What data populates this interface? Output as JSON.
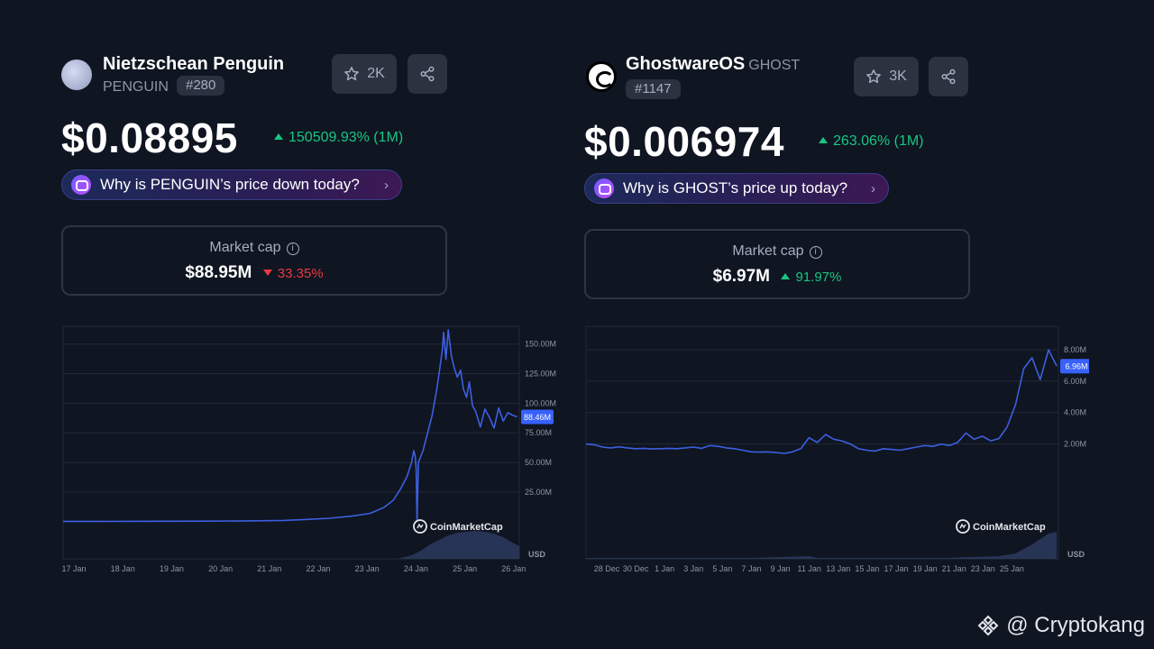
{
  "left": {
    "name": "Nietzschean Penguin",
    "symbol": "PENGUIN",
    "rank": "#280",
    "watchlist_count": "2K",
    "price": "$0.08895",
    "change": "150509.93% (1M)",
    "why_label": "Why is PENGUIN’s price down today?",
    "market_cap_label": "Market cap",
    "market_cap_value": "$88.95M",
    "market_cap_change": "33.35%",
    "chart_credit": "CoinMarketCap",
    "current_value_tag": "88.46M",
    "chart_data": {
      "type": "line",
      "x_ticks": [
        "17 Jan",
        "18 Jan",
        "19 Jan",
        "20 Jan",
        "21 Jan",
        "22 Jan",
        "23 Jan",
        "24 Jan",
        "25 Jan",
        "26 Jan"
      ],
      "y_ticks": [
        "150.00M",
        "125.00M",
        "100.00M",
        "75.00M",
        "50.00M",
        "25.00M"
      ],
      "y_tick_values": [
        150,
        125,
        100,
        75,
        50,
        25
      ],
      "ylim": [
        -1,
        165
      ],
      "xlim": [
        0,
        9.95
      ],
      "currency": "USD",
      "series": [
        {
          "values": [
            [
              0,
              0.2
            ],
            [
              1,
              0.2
            ],
            [
              2,
              0.3
            ],
            [
              3,
              0.4
            ],
            [
              4,
              0.6
            ],
            [
              4.8,
              1.0
            ],
            [
              5.3,
              1.8
            ],
            [
              5.8,
              2.8
            ],
            [
              6.3,
              4.6
            ],
            [
              6.7,
              7
            ],
            [
              7.0,
              12
            ],
            [
              7.2,
              18
            ],
            [
              7.35,
              27
            ],
            [
              7.5,
              38
            ],
            [
              7.6,
              50
            ],
            [
              7.65,
              60
            ],
            [
              7.68,
              55
            ],
            [
              7.7,
              45
            ],
            [
              7.72,
              0.5
            ],
            [
              7.75,
              50
            ],
            [
              7.85,
              60
            ],
            [
              7.95,
              75
            ],
            [
              8.05,
              90
            ],
            [
              8.15,
              112
            ],
            [
              8.2,
              125
            ],
            [
              8.27,
              145
            ],
            [
              8.3,
              160
            ],
            [
              8.35,
              137
            ],
            [
              8.4,
              162
            ],
            [
              8.47,
              140
            ],
            [
              8.53,
              130
            ],
            [
              8.6,
              122
            ],
            [
              8.67,
              128
            ],
            [
              8.73,
              112
            ],
            [
              8.8,
              105
            ],
            [
              8.86,
              118
            ],
            [
              8.93,
              98
            ],
            [
              9.0,
              93
            ],
            [
              9.1,
              80
            ],
            [
              9.2,
              95
            ],
            [
              9.3,
              88
            ],
            [
              9.4,
              79
            ],
            [
              9.5,
              96
            ],
            [
              9.6,
              85
            ],
            [
              9.7,
              92
            ],
            [
              9.8,
              90
            ],
            [
              9.9,
              88.46
            ]
          ]
        }
      ],
      "volume": [
        [
          7.3,
          0
        ],
        [
          7.6,
          4
        ],
        [
          7.8,
          9
        ],
        [
          8.0,
          16
        ],
        [
          8.2,
          21
        ],
        [
          8.4,
          26
        ],
        [
          8.6,
          29
        ],
        [
          8.8,
          30
        ],
        [
          9.0,
          31
        ],
        [
          9.2,
          30
        ],
        [
          9.4,
          28
        ],
        [
          9.6,
          24
        ],
        [
          9.8,
          18
        ],
        [
          9.95,
          14
        ]
      ]
    }
  },
  "right": {
    "name": "GhostwareOS",
    "symbol": "GHOST",
    "rank": "#1147",
    "watchlist_count": "3K",
    "price": "$0.006974",
    "change": "263.06% (1M)",
    "why_label": "Why is GHOST’s price up today?",
    "market_cap_label": "Market cap",
    "market_cap_value": "$6.97M",
    "market_cap_change": "91.97%",
    "chart_credit": "CoinMarketCap",
    "current_value_tag": "6.96M",
    "chart_data": {
      "type": "line",
      "x_ticks": [
        "28 Dec",
        "30 Dec",
        "1 Jan",
        "3 Jan",
        "5 Jan",
        "7 Jan",
        "9 Jan",
        "11 Jan",
        "13 Jan",
        "15 Jan",
        "17 Jan",
        "19 Jan",
        "21 Jan",
        "23 Jan",
        "25 Jan"
      ],
      "y_ticks": [
        "8.00M",
        "6.00M",
        "4.00M",
        "2.00M"
      ],
      "y_tick_values": [
        8,
        6,
        4,
        2
      ],
      "ylim": [
        -1.3,
        9.5
      ],
      "xlim": [
        0,
        32.4
      ],
      "currency": "USD",
      "series": [
        {
          "values": [
            [
              0,
              2.0
            ],
            [
              1,
              1.95
            ],
            [
              2,
              1.8
            ],
            [
              3,
              1.75
            ],
            [
              4,
              1.82
            ],
            [
              5,
              1.75
            ],
            [
              6,
              1.7
            ],
            [
              7,
              1.72
            ],
            [
              8,
              1.68
            ],
            [
              9,
              1.7
            ],
            [
              10,
              1.72
            ],
            [
              11,
              1.7
            ],
            [
              12,
              1.75
            ],
            [
              13,
              1.8
            ],
            [
              14,
              1.72
            ],
            [
              15,
              1.9
            ],
            [
              16,
              1.85
            ],
            [
              17,
              1.75
            ],
            [
              18,
              1.7
            ],
            [
              19,
              1.6
            ],
            [
              20,
              1.5
            ],
            [
              21,
              1.48
            ],
            [
              22,
              1.5
            ],
            [
              23,
              1.45
            ],
            [
              24,
              1.4
            ],
            [
              25,
              1.5
            ],
            [
              26,
              1.7
            ],
            [
              27,
              2.4
            ],
            [
              28,
              2.1
            ],
            [
              29,
              2.6
            ],
            [
              30,
              2.3
            ],
            [
              31,
              2.2
            ],
            [
              32,
              2.0
            ],
            [
              33,
              1.7
            ],
            [
              34,
              1.6
            ],
            [
              35,
              1.55
            ],
            [
              36,
              1.7
            ],
            [
              37,
              1.65
            ],
            [
              38,
              1.6
            ],
            [
              39,
              1.7
            ],
            [
              40,
              1.8
            ],
            [
              41,
              1.9
            ],
            [
              42,
              1.85
            ],
            [
              43,
              2.0
            ],
            [
              44,
              1.9
            ],
            [
              45,
              2.1
            ],
            [
              46,
              2.7
            ],
            [
              47,
              2.3
            ],
            [
              48,
              2.5
            ],
            [
              49,
              2.2
            ],
            [
              50,
              2.35
            ],
            [
              51,
              3.1
            ],
            [
              52,
              4.5
            ],
            [
              53,
              6.8
            ],
            [
              54,
              7.5
            ],
            [
              55,
              6.1
            ],
            [
              56,
              8.0
            ],
            [
              57,
              6.96
            ]
          ],
          "x_scale_note": ""
        }
      ],
      "volume": [
        [
          0,
          0.05
        ],
        [
          10,
          0.05
        ],
        [
          20,
          0.05
        ],
        [
          27,
          0.15
        ],
        [
          28,
          0.05
        ],
        [
          44,
          0.05
        ],
        [
          46,
          0.1
        ],
        [
          48,
          0.12
        ],
        [
          50,
          0.15
        ],
        [
          52,
          0.3
        ],
        [
          54,
          0.8
        ],
        [
          55,
          1.1
        ],
        [
          56,
          1.4
        ],
        [
          57,
          1.5
        ]
      ]
    }
  },
  "watermark": "@ Cryptokang",
  "colors": {
    "background": "#0f1521",
    "line": "#3d5fe0",
    "tag": "#3861fb",
    "up": "#16c784",
    "down": "#ea3943",
    "grid": "#222a38",
    "muted": "#8d95a7"
  },
  "icons": [
    "star-icon",
    "share-icon",
    "ai-chat-icon",
    "chevron-right-icon",
    "info-icon",
    "coinmarketcap-logo-icon",
    "binance-icon"
  ]
}
